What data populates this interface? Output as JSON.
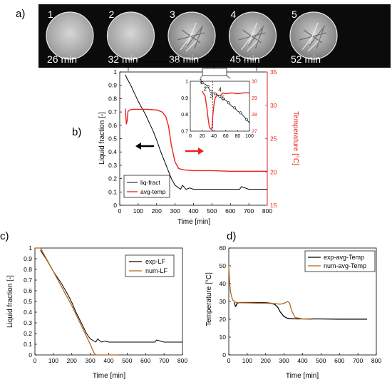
{
  "colors": {
    "black": "#000000",
    "red": "#e8231f",
    "brown": "#b5651d",
    "strip": "#0b0b0b"
  },
  "panel_a": {
    "label": "a)",
    "frames": [
      {
        "index": "1",
        "time": "26 min",
        "state": "liquid"
      },
      {
        "index": "2",
        "time": "32 min",
        "state": "liquid"
      },
      {
        "index": "3",
        "time": "38 min",
        "state": "crystal"
      },
      {
        "index": "4",
        "time": "45 min",
        "state": "crystal"
      },
      {
        "index": "5",
        "time": "52 min",
        "state": "crystal"
      }
    ]
  },
  "chart_data": [
    {
      "panel": "b)",
      "type": "line",
      "xlabel": "Time [min]",
      "ylabel": "Liquid fraction [-]",
      "y2label": "Temperature [°C]",
      "xlim": [
        0,
        800
      ],
      "ylim": [
        0,
        1
      ],
      "y2lim": [
        15,
        35
      ],
      "xticks": [
        "0",
        "100",
        "200",
        "300",
        "400",
        "500",
        "600",
        "700",
        "800"
      ],
      "yticks": [
        "0",
        "0.1",
        "0.2",
        "0.3",
        "0.4",
        "0.5",
        "0.6",
        "0.7",
        "0.8",
        "0.9",
        "1"
      ],
      "y2ticks": [
        "15",
        "20",
        "25",
        "30",
        "35"
      ],
      "legend_position": "bottom-left",
      "series": [
        {
          "name": "liq-fract",
          "color": "#000000",
          "axis": "left",
          "x": [
            30,
            40,
            60,
            80,
            100,
            120,
            140,
            160,
            180,
            200,
            220,
            240,
            260,
            280,
            300,
            320,
            330,
            340,
            360,
            380,
            400,
            450,
            500,
            550,
            600,
            650,
            660,
            700,
            750,
            800
          ],
          "y": [
            0.98,
            0.95,
            0.9,
            0.84,
            0.78,
            0.73,
            0.68,
            0.62,
            0.56,
            0.49,
            0.41,
            0.34,
            0.27,
            0.2,
            0.15,
            0.13,
            0.12,
            0.15,
            0.12,
            0.13,
            0.12,
            0.12,
            0.12,
            0.12,
            0.12,
            0.12,
            0.14,
            0.12,
            0.12,
            0.12
          ]
        },
        {
          "name": "avg-temp",
          "color": "#e8231f",
          "axis": "right",
          "x": [
            30,
            36,
            40,
            45,
            55,
            70,
            100,
            150,
            200,
            230,
            250,
            265,
            280,
            300,
            320,
            350,
            400,
            450,
            500,
            600,
            700,
            800
          ],
          "y": [
            29.5,
            27.2,
            27.6,
            29.1,
            29.3,
            29.4,
            29.4,
            29.4,
            29.3,
            29.0,
            28.3,
            26.8,
            24.0,
            21.5,
            20.5,
            20.3,
            20.2,
            20.2,
            20.2,
            20.1,
            20.1,
            20.1
          ]
        }
      ],
      "arrows": [
        {
          "points": "left",
          "axis": "liquid fraction"
        },
        {
          "points": "right",
          "axis": "temperature"
        }
      ],
      "inset": {
        "xlim": [
          0,
          100
        ],
        "ylim": [
          0.7,
          1
        ],
        "y2lim": [
          27,
          30
        ],
        "xticks": [
          "0",
          "20",
          "40",
          "60",
          "80",
          "100"
        ],
        "yticks": [
          "0.7",
          "0.8",
          "0.9",
          "1"
        ],
        "y2ticks": [
          "27",
          "28",
          "29",
          "30"
        ],
        "markers": [
          "1",
          "2",
          "3",
          "4",
          "5"
        ],
        "marker_x": [
          26,
          32,
          38,
          45,
          52
        ],
        "liq": {
          "x": [
            20,
            26,
            30,
            32,
            35,
            38,
            42,
            45,
            50,
            52,
            55,
            60,
            65,
            70,
            75,
            80,
            85,
            90,
            95,
            100
          ],
          "y": [
            0.99,
            0.98,
            0.97,
            0.95,
            0.94,
            0.93,
            0.925,
            0.92,
            0.91,
            0.9,
            0.895,
            0.885,
            0.87,
            0.85,
            0.84,
            0.82,
            0.81,
            0.79,
            0.77,
            0.75
          ]
        },
        "temp": {
          "x": [
            20,
            25,
            28,
            30,
            32,
            34,
            36,
            37,
            38,
            40,
            42,
            45,
            50,
            55,
            60,
            70,
            80,
            90,
            100
          ],
          "y": [
            29.4,
            29.1,
            28.4,
            27.8,
            27.3,
            27.15,
            27.1,
            27.3,
            27.9,
            28.6,
            29.0,
            29.15,
            29.1,
            29.3,
            29.25,
            29.3,
            29.25,
            29.3,
            29.3
          ]
        }
      }
    },
    {
      "panel": "c)",
      "type": "line",
      "xlabel": "Time [min]",
      "ylabel": "Liquid fraction [-]",
      "xlim": [
        0,
        800
      ],
      "ylim": [
        0,
        1
      ],
      "xticks": [
        "0",
        "100",
        "200",
        "300",
        "400",
        "500",
        "600",
        "700",
        "800"
      ],
      "yticks": [
        "0",
        "0.1",
        "0.2",
        "0.3",
        "0.4",
        "0.5",
        "0.6",
        "0.7",
        "0.8",
        "0.9",
        "1"
      ],
      "legend_position": "top-right",
      "series": [
        {
          "name": "exp-LF",
          "color": "#000000",
          "x": [
            30,
            40,
            60,
            80,
            100,
            120,
            140,
            160,
            180,
            200,
            220,
            240,
            260,
            280,
            300,
            320,
            330,
            340,
            360,
            380,
            400,
            450,
            500,
            550,
            600,
            650,
            660,
            700,
            750,
            800
          ],
          "y": [
            0.98,
            0.95,
            0.9,
            0.84,
            0.78,
            0.73,
            0.68,
            0.62,
            0.56,
            0.49,
            0.41,
            0.34,
            0.27,
            0.2,
            0.15,
            0.13,
            0.12,
            0.15,
            0.12,
            0.13,
            0.12,
            0.12,
            0.12,
            0.12,
            0.12,
            0.12,
            0.14,
            0.12,
            0.12,
            0.12
          ]
        },
        {
          "name": "num-LF",
          "color": "#b5651d",
          "x": [
            0,
            30,
            100,
            200,
            300,
            320,
            330,
            450
          ],
          "y": [
            1.0,
            1.0,
            0.78,
            0.46,
            0.1,
            0.02,
            0.0,
            0.0
          ]
        }
      ]
    },
    {
      "panel": "d)",
      "type": "line",
      "xlabel": "Time [min]",
      "ylabel": "Temperature [°C]",
      "xlim": [
        0,
        800
      ],
      "ylim": [
        0,
        60
      ],
      "xticks": [
        "0",
        "100",
        "200",
        "300",
        "400",
        "500",
        "600",
        "700",
        "800"
      ],
      "yticks": [
        "0",
        "10",
        "20",
        "30",
        "40",
        "50",
        "60"
      ],
      "legend_position": "top-right",
      "series": [
        {
          "name": "exp-avg-Temp",
          "color": "#000000",
          "x": [
            30,
            36,
            40,
            45,
            55,
            70,
            100,
            150,
            200,
            230,
            250,
            265,
            280,
            300,
            320,
            350,
            400,
            450,
            500,
            600,
            700,
            750
          ],
          "y": [
            29.5,
            27.2,
            27.6,
            29.1,
            29.3,
            29.4,
            29.4,
            29.4,
            29.3,
            29.0,
            28.3,
            26.8,
            24.0,
            21.5,
            20.5,
            20.3,
            20.2,
            20.2,
            20.2,
            20.1,
            20.1,
            20.1
          ]
        },
        {
          "name": "num-avg-Temp",
          "color": "#b5651d",
          "x": [
            0,
            5,
            10,
            20,
            30,
            40,
            60,
            100,
            150,
            200,
            250,
            280,
            300,
            320,
            330,
            340,
            360,
            400,
            450
          ],
          "y": [
            50,
            40,
            35,
            31,
            30,
            29.5,
            29.3,
            29.2,
            29.1,
            29.0,
            28.8,
            28.5,
            29.0,
            30.0,
            29.0,
            25.0,
            21.0,
            20.2,
            20.0
          ]
        }
      ]
    }
  ]
}
